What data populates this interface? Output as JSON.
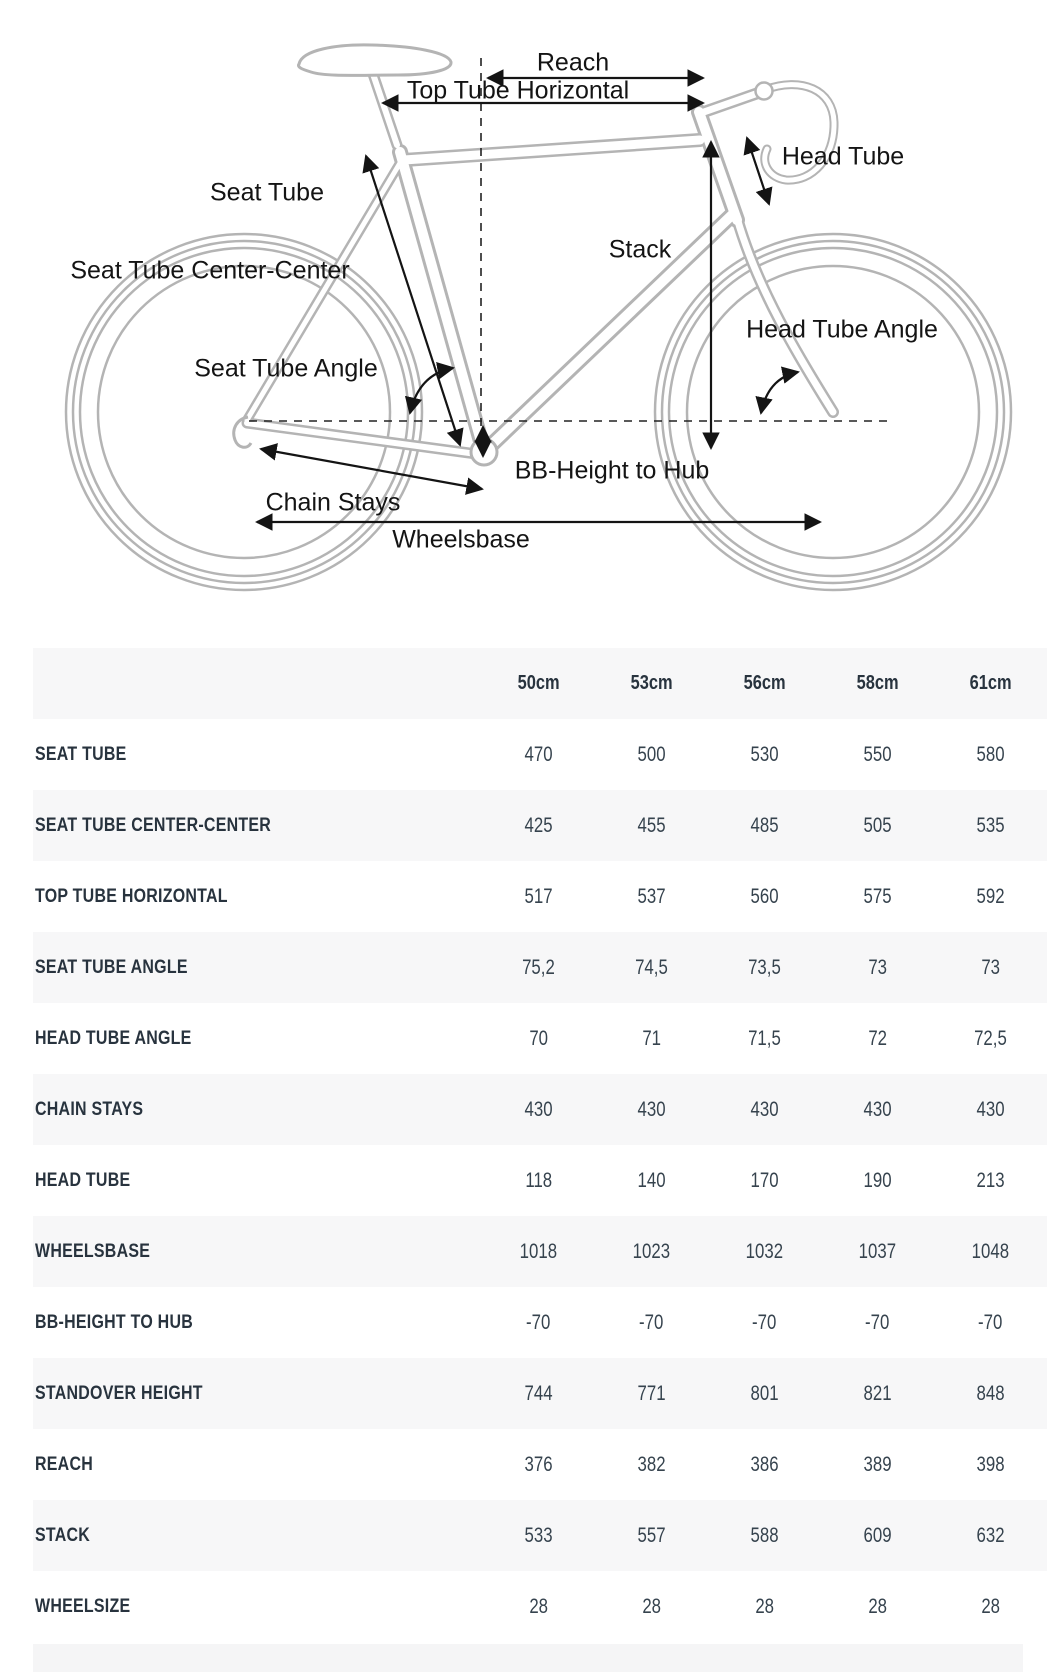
{
  "diagram": {
    "labels": {
      "reach": "Reach",
      "top_tube_horizontal": "Top Tube Horizontal",
      "head_tube": "Head Tube",
      "seat_tube": "Seat Tube",
      "seat_tube_center_center": "Seat Tube Center-Center",
      "stack": "Stack",
      "head_tube_angle": "Head Tube Angle",
      "seat_tube_angle": "Seat Tube Angle",
      "bb_height_to_hub": "BB-Height to Hub",
      "chain_stays": "Chain Stays",
      "wheelsbase": "Wheelsbase"
    }
  },
  "colors": {
    "frame_gray": "#b4b4b4",
    "line_black": "#141414",
    "row_stripe": "#f7f7f8",
    "label_text": "#28333e",
    "value_text": "#36434e"
  },
  "chart_data": {
    "type": "table",
    "title": "Bike frame geometry by size",
    "columns": [
      "50cm",
      "53cm",
      "56cm",
      "58cm",
      "61cm"
    ],
    "rows": [
      {
        "label": "SEAT TUBE",
        "values": [
          "470",
          "500",
          "530",
          "550",
          "580"
        ]
      },
      {
        "label": "SEAT TUBE CENTER-CENTER",
        "values": [
          "425",
          "455",
          "485",
          "505",
          "535"
        ]
      },
      {
        "label": "TOP TUBE HORIZONTAL",
        "values": [
          "517",
          "537",
          "560",
          "575",
          "592"
        ]
      },
      {
        "label": "SEAT TUBE ANGLE",
        "values": [
          "75,2",
          "74,5",
          "73,5",
          "73",
          "73"
        ]
      },
      {
        "label": "HEAD TUBE ANGLE",
        "values": [
          "70",
          "71",
          "71,5",
          "72",
          "72,5"
        ]
      },
      {
        "label": "CHAIN STAYS",
        "values": [
          "430",
          "430",
          "430",
          "430",
          "430"
        ]
      },
      {
        "label": "HEAD TUBE",
        "values": [
          "118",
          "140",
          "170",
          "190",
          "213"
        ]
      },
      {
        "label": "WHEELSBASE",
        "values": [
          "1018",
          "1023",
          "1032",
          "1037",
          "1048"
        ]
      },
      {
        "label": "BB-HEIGHT TO HUB",
        "values": [
          "-70",
          "-70",
          "-70",
          "-70",
          "-70"
        ]
      },
      {
        "label": "STANDOVER HEIGHT",
        "values": [
          "744",
          "771",
          "801",
          "821",
          "848"
        ]
      },
      {
        "label": "REACH",
        "values": [
          "376",
          "382",
          "386",
          "389",
          "398"
        ]
      },
      {
        "label": "STACK",
        "values": [
          "533",
          "557",
          "588",
          "609",
          "632"
        ]
      },
      {
        "label": "WHEELSIZE",
        "values": [
          "28",
          "28",
          "28",
          "28",
          "28"
        ]
      }
    ]
  }
}
